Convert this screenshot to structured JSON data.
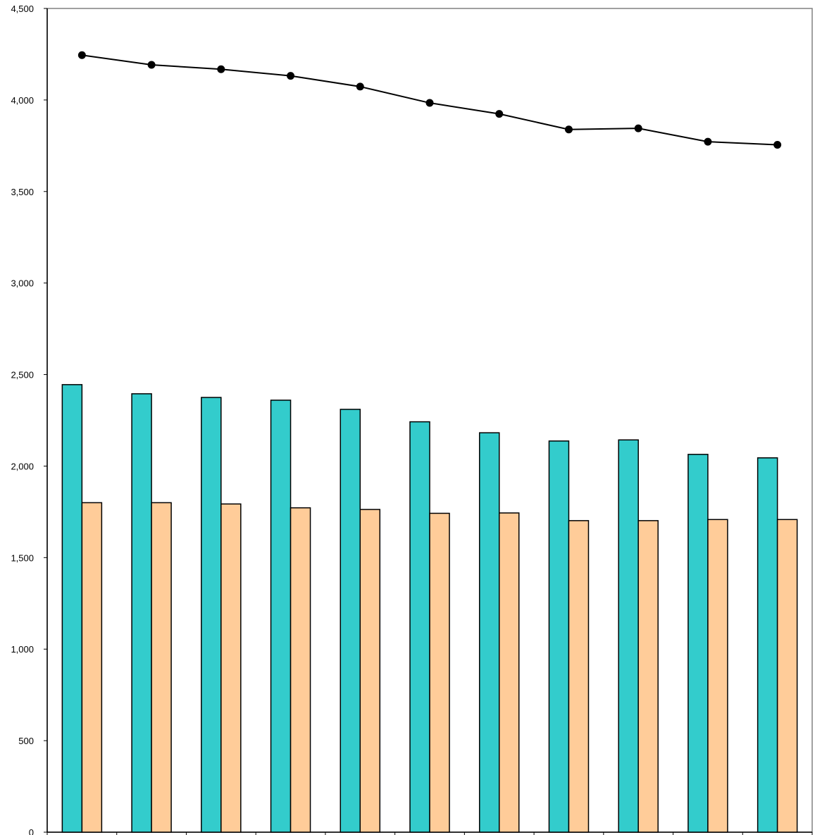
{
  "chart_data": {
    "type": "bar",
    "title": "",
    "xlabel": "",
    "ylabel": "",
    "ylim": [
      0,
      4500
    ],
    "yticks": [
      0,
      500,
      1000,
      1500,
      2000,
      2500,
      3000,
      3500,
      4000,
      4500
    ],
    "ytick_labels": [
      "0",
      "500",
      "1,000",
      "1,500",
      "2,000",
      "2,500",
      "3,000",
      "3,500",
      "4,000",
      "4,500"
    ],
    "grid": false,
    "legend": "none",
    "category_count": 11,
    "series": [
      {
        "kind": "bar",
        "color": "#33cccc",
        "values": [
          2445,
          2395,
          2375,
          2360,
          2310,
          2242,
          2182,
          2137,
          2143,
          2064,
          2045
        ]
      },
      {
        "kind": "bar",
        "color": "#ffcc99",
        "values": [
          1800,
          1800,
          1793,
          1772,
          1763,
          1742,
          1744,
          1702,
          1702,
          1708,
          1708
        ]
      },
      {
        "kind": "line",
        "color": "#000000",
        "values": [
          4245,
          4192,
          4168,
          4132,
          4073,
          3984,
          3924,
          3839,
          3845,
          3772,
          3755
        ]
      }
    ]
  }
}
